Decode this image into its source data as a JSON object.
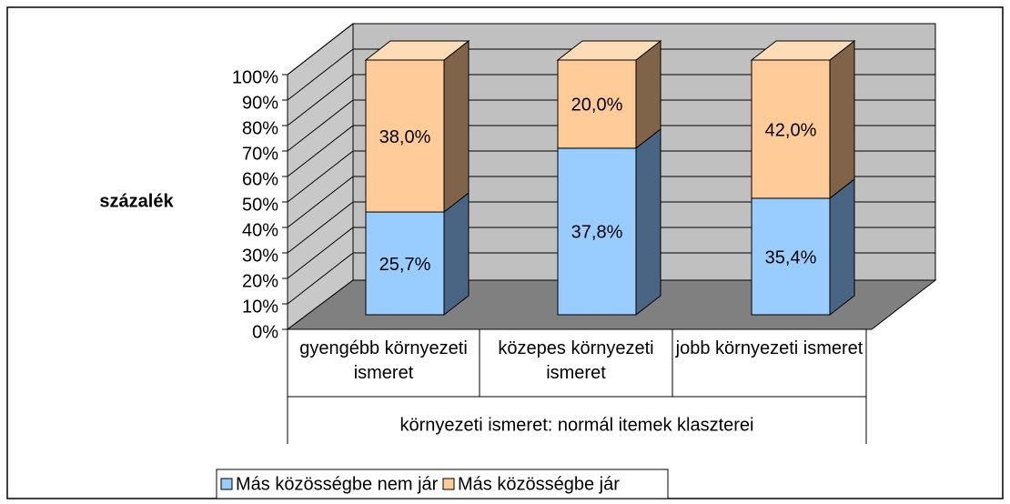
{
  "chart_data": {
    "type": "bar",
    "stacking": "percent",
    "projection": "3d",
    "y_label": "százalék",
    "x_label": "környezeti ismeret: normál itemek klaszterei",
    "categories": [
      "gyengébb környezeti ismeret",
      "közepes környezeti ismeret",
      "jobb környezeti ismeret"
    ],
    "series": [
      {
        "name": "Más közösségbe nem jár",
        "color": "#99ccff",
        "side_color": "#4a6583",
        "top_color": "#b8dcff",
        "values": [
          25.7,
          37.8,
          35.4
        ],
        "value_labels": [
          "25,7%",
          "37,8%",
          "35,4%"
        ]
      },
      {
        "name": "Más közösségbe  jár",
        "color": "#ffcc99",
        "side_color": "#80644a",
        "top_color": "#ffdcb8",
        "values": [
          38.0,
          20.0,
          42.0
        ],
        "value_labels": [
          "38,0%",
          "20,0%",
          "42,0%"
        ]
      }
    ],
    "ylim": [
      0,
      100
    ],
    "yticks": [
      {
        "value": 0,
        "label": "0%"
      },
      {
        "value": 10,
        "label": "10%"
      },
      {
        "value": 20,
        "label": "20%"
      },
      {
        "value": 30,
        "label": "30%"
      },
      {
        "value": 40,
        "label": "40%"
      },
      {
        "value": 50,
        "label": "50%"
      },
      {
        "value": 60,
        "label": "60%"
      },
      {
        "value": 70,
        "label": "70%"
      },
      {
        "value": 80,
        "label": "80%"
      },
      {
        "value": 90,
        "label": "90%"
      },
      {
        "value": 100,
        "label": "100%"
      }
    ],
    "grid": true,
    "legend": "bottom"
  }
}
